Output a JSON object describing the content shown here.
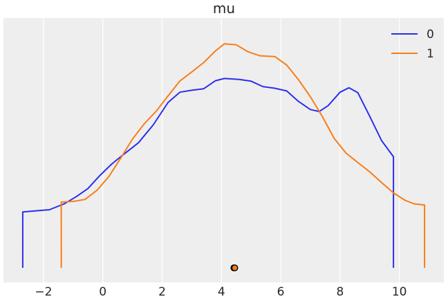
{
  "chart_data": {
    "type": "line",
    "title": "mu",
    "xlabel": "",
    "ylabel": "",
    "xlim": [
      -3.35,
      11.5
    ],
    "ylim": [
      0,
      1.0
    ],
    "grid": true,
    "legend_position": "top-right",
    "x_ticks": [
      -2,
      0,
      2,
      4,
      6,
      8,
      10
    ],
    "x_tick_labels": [
      "−2",
      "0",
      "2",
      "4",
      "6",
      "8",
      "10"
    ],
    "series": [
      {
        "name": "0",
        "color": "#2a2eec",
        "start_drop": true,
        "end_drop": true,
        "points": [
          [
            -2.7,
            0.229
          ],
          [
            -2.3,
            0.233
          ],
          [
            -1.8,
            0.238
          ],
          [
            -1.3,
            0.262
          ],
          [
            -0.9,
            0.291
          ],
          [
            -0.5,
            0.325
          ],
          [
            -0.1,
            0.378
          ],
          [
            0.3,
            0.425
          ],
          [
            0.7,
            0.464
          ],
          [
            1.2,
            0.512
          ],
          [
            1.7,
            0.585
          ],
          [
            2.2,
            0.677
          ],
          [
            2.6,
            0.719
          ],
          [
            3.0,
            0.727
          ],
          [
            3.4,
            0.733
          ],
          [
            3.8,
            0.766
          ],
          [
            4.1,
            0.775
          ],
          [
            4.6,
            0.771
          ],
          [
            5.0,
            0.764
          ],
          [
            5.4,
            0.742
          ],
          [
            5.8,
            0.735
          ],
          [
            6.2,
            0.724
          ],
          [
            6.6,
            0.681
          ],
          [
            7.0,
            0.648
          ],
          [
            7.3,
            0.64
          ],
          [
            7.6,
            0.664
          ],
          [
            8.0,
            0.719
          ],
          [
            8.3,
            0.737
          ],
          [
            8.6,
            0.717
          ],
          [
            9.0,
            0.62
          ],
          [
            9.4,
            0.521
          ],
          [
            9.8,
            0.455
          ]
        ]
      },
      {
        "name": "1",
        "color": "#fa7c17",
        "start_drop": true,
        "end_drop": true,
        "points": [
          [
            -1.4,
            0.269
          ],
          [
            -1.0,
            0.272
          ],
          [
            -0.6,
            0.28
          ],
          [
            -0.2,
            0.317
          ],
          [
            0.2,
            0.373
          ],
          [
            0.6,
            0.448
          ],
          [
            1.0,
            0.527
          ],
          [
            1.4,
            0.59
          ],
          [
            1.8,
            0.641
          ],
          [
            2.2,
            0.704
          ],
          [
            2.6,
            0.765
          ],
          [
            3.0,
            0.802
          ],
          [
            3.4,
            0.84
          ],
          [
            3.8,
            0.888
          ],
          [
            4.1,
            0.917
          ],
          [
            4.5,
            0.913
          ],
          [
            4.9,
            0.884
          ],
          [
            5.3,
            0.868
          ],
          [
            5.8,
            0.865
          ],
          [
            6.2,
            0.83
          ],
          [
            6.6,
            0.77
          ],
          [
            7.0,
            0.7
          ],
          [
            7.4,
            0.62
          ],
          [
            7.8,
            0.53
          ],
          [
            8.2,
            0.47
          ],
          [
            8.6,
            0.431
          ],
          [
            9.0,
            0.393
          ],
          [
            9.4,
            0.349
          ],
          [
            9.8,
            0.307
          ],
          [
            10.2,
            0.276
          ],
          [
            10.5,
            0.262
          ],
          [
            10.85,
            0.257
          ]
        ]
      }
    ],
    "points": [
      {
        "series": "0",
        "x": 4.42,
        "y": 0,
        "color": "#2a2eec"
      },
      {
        "series": "1",
        "x": 4.45,
        "y": 0,
        "color": "#fa7c17"
      }
    ]
  }
}
